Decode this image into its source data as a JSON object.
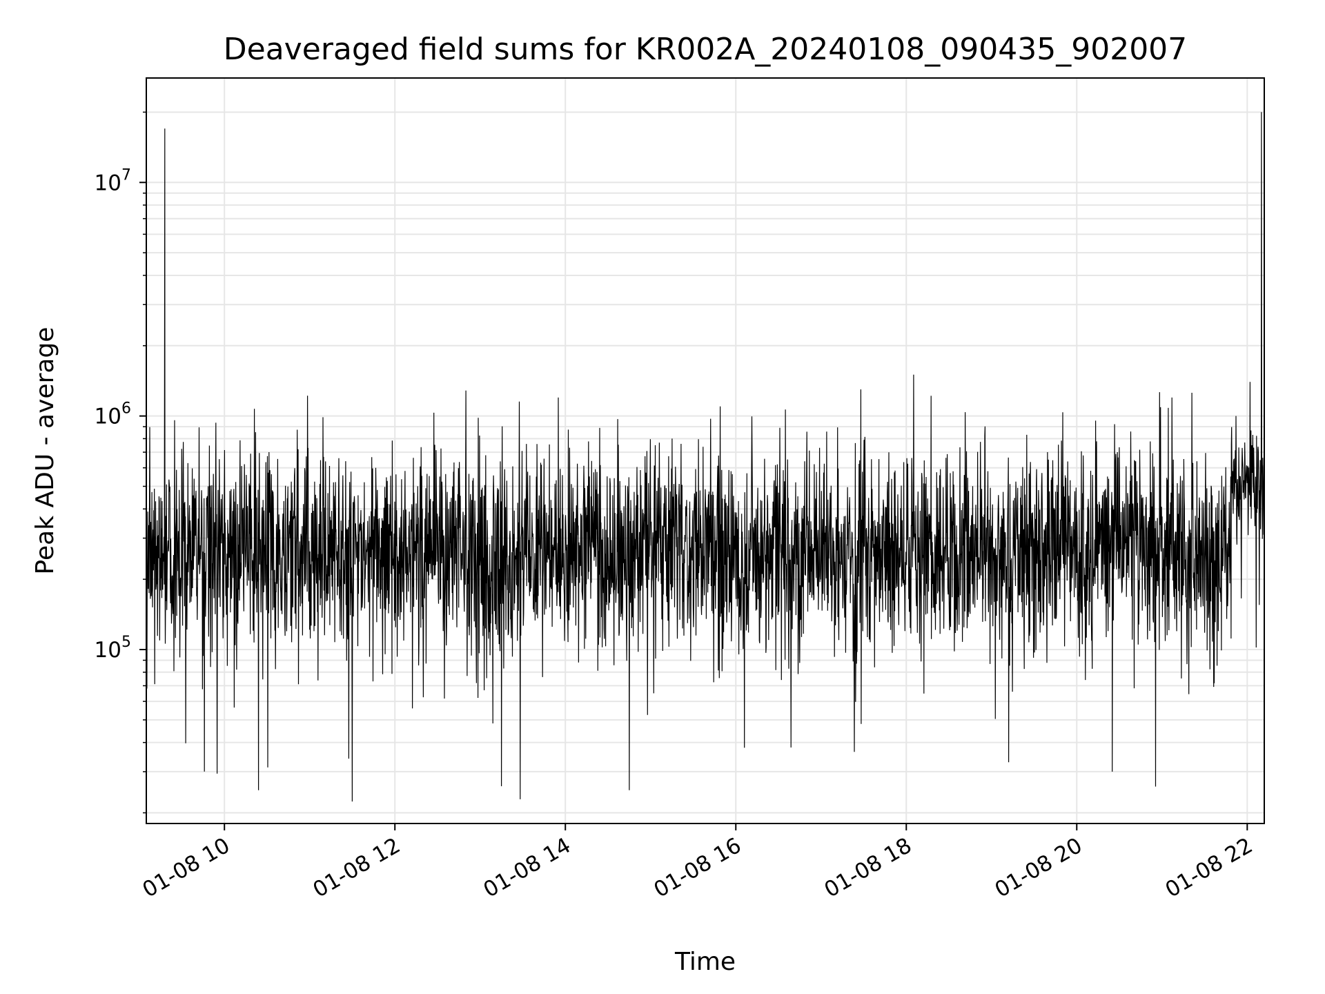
{
  "chart_data": {
    "type": "line",
    "title": "Deaveraged field sums for KR002A_20240108_090435_902007",
    "xlabel": "Time",
    "ylabel": "Peak ADU - average",
    "x_range": [
      "2024-01-08 09:05",
      "2024-01-08 22:12"
    ],
    "xticks": [
      "01-08 10",
      "01-08 12",
      "01-08 14",
      "01-08 16",
      "01-08 18",
      "01-08 20",
      "01-08 22"
    ],
    "y_scale": "log",
    "ylim": [
      18000,
      28000000
    ],
    "yticks": [
      {
        "base": "10",
        "exp": "5"
      },
      {
        "base": "10",
        "exp": "6"
      },
      {
        "base": "10",
        "exp": "7"
      }
    ],
    "grid": true,
    "line_color": "#000000",
    "series": [
      {
        "values_description": "dense noisy time series",
        "base_level": 300000,
        "segments": [
          {
            "from": "2024-01-08 09:05",
            "to": "2024-01-08 21:48",
            "typical_low": 100000,
            "typical_high": 700000
          },
          {
            "from": "2024-01-08 21:48",
            "to": "2024-01-08 22:12",
            "typical_low": 300000,
            "typical_high": 900000
          }
        ],
        "spikes": [
          {
            "x": "2024-01-08 09:18",
            "y": 17000000
          },
          {
            "x": "2024-01-08 22:10",
            "y": 20000000
          },
          {
            "x": "2024-01-08 13:55",
            "y": 1200000
          },
          {
            "x": "2024-01-08 17:28",
            "y": 1300000
          },
          {
            "x": "2024-01-08 22:02",
            "y": 1400000
          },
          {
            "x": "2024-01-08 21:07",
            "y": 1200000
          },
          {
            "x": "2024-01-08 10:24",
            "y": 25000
          },
          {
            "x": "2024-01-08 14:45",
            "y": 25000
          },
          {
            "x": "2024-01-08 13:15",
            "y": 26000
          },
          {
            "x": "2024-01-08 20:25",
            "y": 30000
          }
        ]
      }
    ]
  }
}
